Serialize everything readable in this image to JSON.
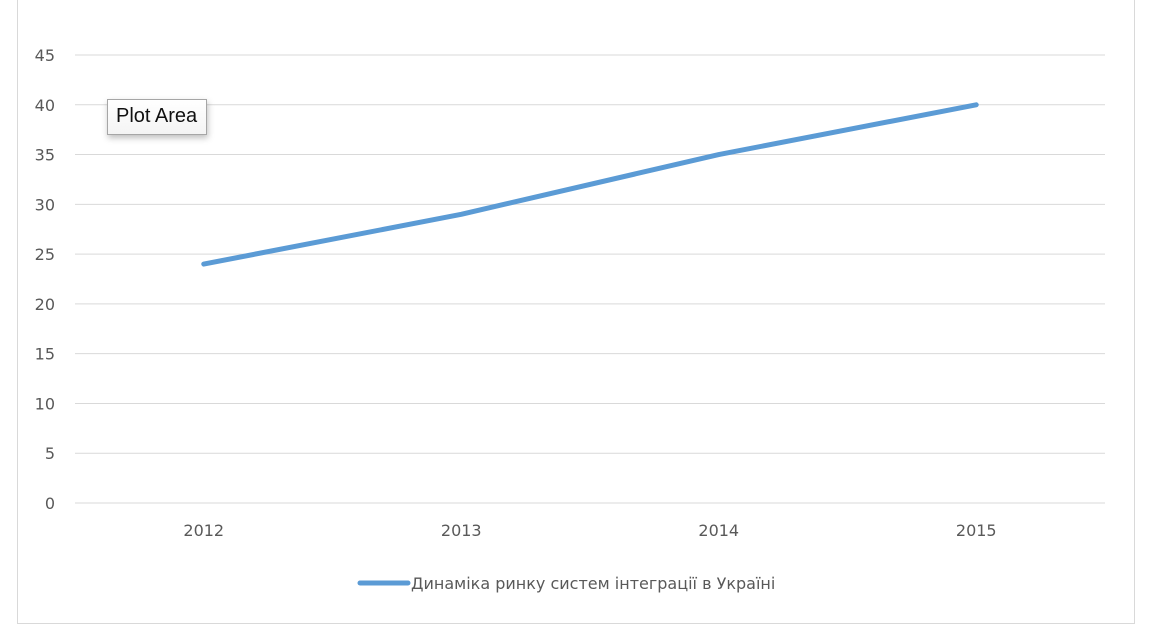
{
  "tooltip": {
    "text": "Plot Area"
  },
  "chart_data": {
    "type": "line",
    "categories": [
      "2012",
      "2013",
      "2014",
      "2015"
    ],
    "series": [
      {
        "name": "Динаміка ринку систем інтеграції в Україні",
        "values": [
          24,
          29,
          35,
          40
        ],
        "color": "#5b9bd5"
      }
    ],
    "ylim": [
      0,
      45
    ],
    "yticks": [
      0,
      5,
      10,
      15,
      20,
      25,
      30,
      35,
      40,
      45
    ],
    "grid": true,
    "legend_position": "bottom",
    "title": "",
    "xlabel": "",
    "ylabel": ""
  }
}
